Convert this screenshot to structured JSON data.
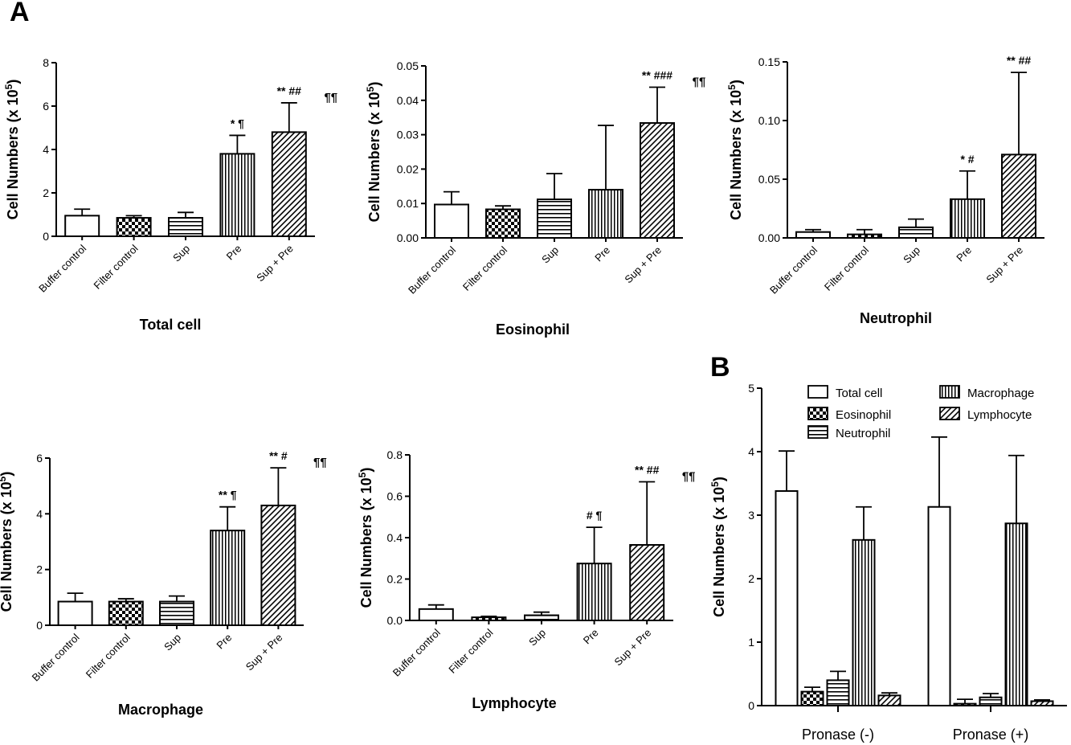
{
  "panels": {
    "a_label": "A",
    "b_label": "B"
  },
  "pattern_names": [
    "open",
    "checker",
    "hstripe",
    "vstripe",
    "diag"
  ],
  "chart_data": [
    {
      "type": "bar",
      "title": "Total cell",
      "ylabel": "Cell Numbers (x 10",
      "ylabel_sup": "5",
      "ylabel_tail": ")",
      "categories": [
        "Buffer control",
        "Filter control",
        "Sup",
        "Pre",
        "Sup + Pre"
      ],
      "values": [
        0.95,
        0.85,
        0.85,
        3.8,
        4.8
      ],
      "errors": [
        0.3,
        0.1,
        0.25,
        0.85,
        1.35
      ],
      "patterns": [
        "open",
        "checker",
        "hstripe",
        "vstripe",
        "diag"
      ],
      "annotations": [
        null,
        null,
        null,
        "*   ¶",
        "**   ##"
      ],
      "extra_marks": [
        null,
        null,
        null,
        null,
        "¶¶"
      ],
      "ylim": [
        0,
        8
      ],
      "yticks": [
        "0",
        "2",
        "4",
        "6",
        "8"
      ],
      "tick_values": [
        0,
        2,
        4,
        6,
        8
      ]
    },
    {
      "type": "bar",
      "title": "Eosinophil",
      "ylabel": "Cell Numbers (x 10",
      "ylabel_sup": "5",
      "ylabel_tail": ")",
      "categories": [
        "Buffer control",
        "Filter control",
        "Sup",
        "Pre",
        "Sup + Pre"
      ],
      "values": [
        0.0097,
        0.0083,
        0.0112,
        0.014,
        0.0334
      ],
      "errors": [
        0.0037,
        0.001,
        0.0075,
        0.0187,
        0.0104
      ],
      "patterns": [
        "open",
        "checker",
        "hstripe",
        "vstripe",
        "diag"
      ],
      "annotations": [
        null,
        null,
        null,
        null,
        "**   ###"
      ],
      "extra_marks": [
        null,
        null,
        null,
        null,
        "¶¶"
      ],
      "ylim": [
        0,
        0.05
      ],
      "yticks": [
        "0.00",
        "0.01",
        "0.02",
        "0.03",
        "0.04",
        "0.05"
      ],
      "tick_values": [
        0,
        0.01,
        0.02,
        0.03,
        0.04,
        0.05
      ]
    },
    {
      "type": "bar",
      "title": "Neutrophil",
      "ylabel": "Cell Numbers (x 10",
      "ylabel_sup": "5",
      "ylabel_tail": ")",
      "categories": [
        "Buffer control",
        "Filter control",
        "Sup",
        "Pre",
        "Sup + Pre"
      ],
      "values": [
        0.005,
        0.003,
        0.009,
        0.033,
        0.071
      ],
      "errors": [
        0.002,
        0.004,
        0.007,
        0.024,
        0.07
      ],
      "patterns": [
        "open",
        "checker",
        "hstripe",
        "vstripe",
        "diag"
      ],
      "annotations": [
        null,
        null,
        null,
        "*  #",
        "**  ##"
      ],
      "extra_marks": [
        null,
        null,
        null,
        null,
        null
      ],
      "ylim": [
        0,
        0.15
      ],
      "yticks": [
        "0.00",
        "0.05",
        "0.10",
        "0.15"
      ],
      "tick_values": [
        0,
        0.05,
        0.1,
        0.15
      ]
    },
    {
      "type": "bar",
      "title": "Macrophage",
      "ylabel": "Cell Numbers (x 10",
      "ylabel_sup": "5",
      "ylabel_tail": ")",
      "categories": [
        "Buffer control",
        "Filter control",
        "Sup",
        "Pre",
        "Sup + Pre"
      ],
      "values": [
        0.85,
        0.85,
        0.85,
        3.4,
        4.3
      ],
      "errors": [
        0.3,
        0.1,
        0.2,
        0.85,
        1.35
      ],
      "patterns": [
        "open",
        "checker",
        "hstripe",
        "vstripe",
        "diag"
      ],
      "annotations": [
        null,
        null,
        null,
        "**  ¶",
        "**   #"
      ],
      "extra_marks": [
        null,
        null,
        null,
        null,
        "¶¶"
      ],
      "ylim": [
        0,
        6
      ],
      "yticks": [
        "0",
        "2",
        "4",
        "6"
      ],
      "tick_values": [
        0,
        2,
        4,
        6
      ]
    },
    {
      "type": "bar",
      "title": "Lymphocyte",
      "ylabel": "Cell Numbers (x 10",
      "ylabel_sup": "5",
      "ylabel_tail": ")",
      "categories": [
        "Buffer control",
        "Filter control",
        "Sup",
        "Pre",
        "Sup + Pre"
      ],
      "values": [
        0.055,
        0.015,
        0.025,
        0.275,
        0.365
      ],
      "errors": [
        0.02,
        0.005,
        0.015,
        0.175,
        0.305
      ],
      "patterns": [
        "open",
        "checker",
        "hstripe",
        "vstripe",
        "diag"
      ],
      "annotations": [
        null,
        null,
        null,
        "#  ¶",
        "**   ##"
      ],
      "extra_marks": [
        null,
        null,
        null,
        null,
        "¶¶"
      ],
      "ylim": [
        0,
        0.8
      ],
      "yticks": [
        "0.0",
        "0.2",
        "0.4",
        "0.6",
        "0.8"
      ],
      "tick_values": [
        0,
        0.2,
        0.4,
        0.6,
        0.8
      ]
    },
    {
      "type": "bar",
      "title": "",
      "ylabel": "Cell Numbers (x 10",
      "ylabel_sup": "5",
      "ylabel_tail": ")",
      "categories": [
        "Pronase (-)",
        "Pronase (+)"
      ],
      "series": [
        {
          "name": "Total cell",
          "pattern": "open",
          "values": [
            3.38,
            3.13
          ],
          "errors": [
            0.63,
            1.1
          ]
        },
        {
          "name": "Eosinophil",
          "pattern": "checker",
          "values": [
            0.22,
            0.03
          ],
          "errors": [
            0.07,
            0.07
          ]
        },
        {
          "name": "Neutrophil",
          "pattern": "hstripe",
          "values": [
            0.4,
            0.13
          ],
          "errors": [
            0.14,
            0.06
          ]
        },
        {
          "name": "Macrophage",
          "pattern": "vstripe",
          "values": [
            2.61,
            2.87
          ],
          "errors": [
            0.52,
            1.07
          ]
        },
        {
          "name": "Lymphocyte",
          "pattern": "diag",
          "values": [
            0.16,
            0.07
          ],
          "errors": [
            0.04,
            0.02
          ]
        }
      ],
      "legend_placement": "top",
      "ylim": [
        0,
        5
      ],
      "yticks": [
        "0",
        "1",
        "2",
        "3",
        "4",
        "5"
      ],
      "tick_values": [
        0,
        1,
        2,
        3,
        4,
        5
      ]
    }
  ]
}
